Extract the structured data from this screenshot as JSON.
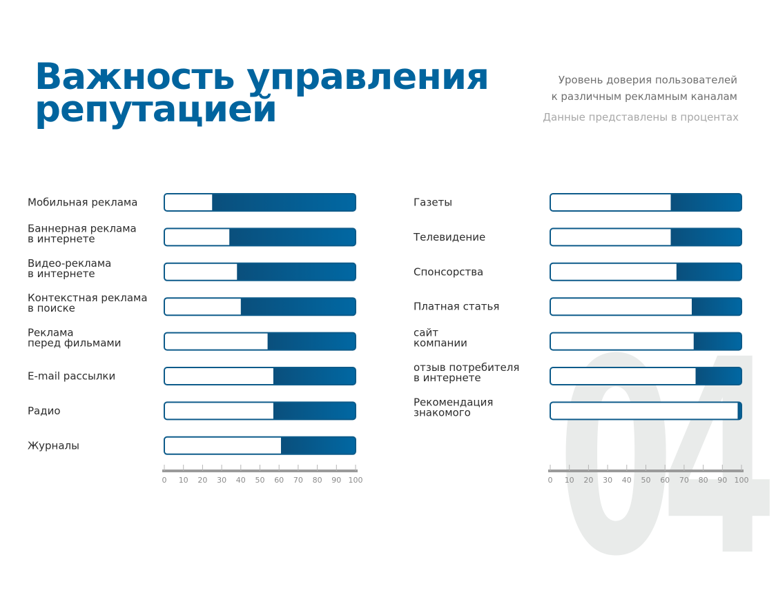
{
  "header": {
    "title_lines": [
      "Важность управления",
      "репутацией"
    ],
    "subtitle_lines": [
      "Уровень доверия пользователей",
      "к различным рекламным каналам"
    ],
    "note": "Данные представлены в процентах",
    "watermark": "04"
  },
  "colors": {
    "accent": "#01649e",
    "border": "#0d5b8a",
    "axis": "#9a9a9a"
  },
  "chart_data": [
    {
      "type": "bar",
      "orientation": "horizontal",
      "categories": [
        [
          "Мобильная реклама"
        ],
        [
          "Баннерная реклама",
          "в интернете"
        ],
        [
          "Видео-реклама",
          "в интернете"
        ],
        [
          "Контекстная реклама",
          "в поиске"
        ],
        [
          "Реклама",
          "перед фильмами"
        ],
        [
          "E-mail рассылки"
        ],
        [
          "Радио"
        ],
        [
          "Журналы"
        ]
      ],
      "values": [
        75,
        66,
        62,
        60,
        46,
        43,
        43,
        39
      ],
      "xlim": [
        0,
        100
      ],
      "ticks": [
        0,
        10,
        20,
        30,
        40,
        50,
        60,
        70,
        80,
        90,
        100
      ]
    },
    {
      "type": "bar",
      "orientation": "horizontal",
      "categories": [
        [
          "Газеты"
        ],
        [
          "Телевидение"
        ],
        [
          "Спонсорства"
        ],
        [
          "Платная статья"
        ],
        [
          "сайт",
          "компании"
        ],
        [
          "отзыв потребителя",
          "в интернете"
        ],
        [
          "Рекомендация",
          "знакомого"
        ]
      ],
      "values": [
        37,
        37,
        34,
        26,
        25,
        24,
        2
      ],
      "xlim": [
        0,
        100
      ],
      "ticks": [
        0,
        10,
        20,
        30,
        40,
        50,
        60,
        70,
        80,
        90,
        100
      ]
    }
  ]
}
